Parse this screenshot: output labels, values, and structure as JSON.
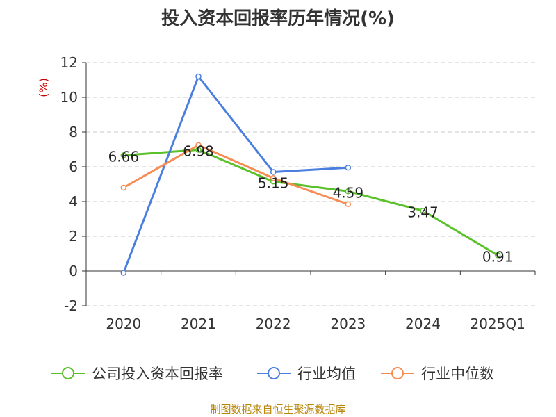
{
  "title": "投入资本回报率历年情况(%)",
  "source": "制图数据来自恒生聚源数据库",
  "chart_data": {
    "type": "line",
    "title": "投入资本回报率历年情况(%)",
    "ylabel": "(%)",
    "ylim": [
      -2,
      12
    ],
    "yticks": [
      "-2",
      "0",
      "2",
      "4",
      "6",
      "8",
      "10",
      "12"
    ],
    "categories": [
      "2020",
      "2021",
      "2022",
      "2023",
      "2024",
      "2025Q1"
    ],
    "grid": true,
    "legend_position": "bottom",
    "series": [
      {
        "name": "公司投入资本回报率",
        "color": "#5bc12b",
        "values": [
          6.66,
          6.98,
          5.15,
          4.59,
          3.47,
          0.91
        ],
        "labels": [
          "6.66",
          "6.98",
          "5.15",
          "4.59",
          "3.47",
          "0.91"
        ]
      },
      {
        "name": "行业均值",
        "color": "#4a7fe0",
        "values": [
          -0.1,
          11.2,
          5.7,
          5.95,
          null,
          null
        ],
        "labels": []
      },
      {
        "name": "行业中位数",
        "color": "#f78d54",
        "values": [
          4.8,
          7.25,
          5.35,
          3.85,
          null,
          null
        ],
        "labels": []
      }
    ]
  }
}
